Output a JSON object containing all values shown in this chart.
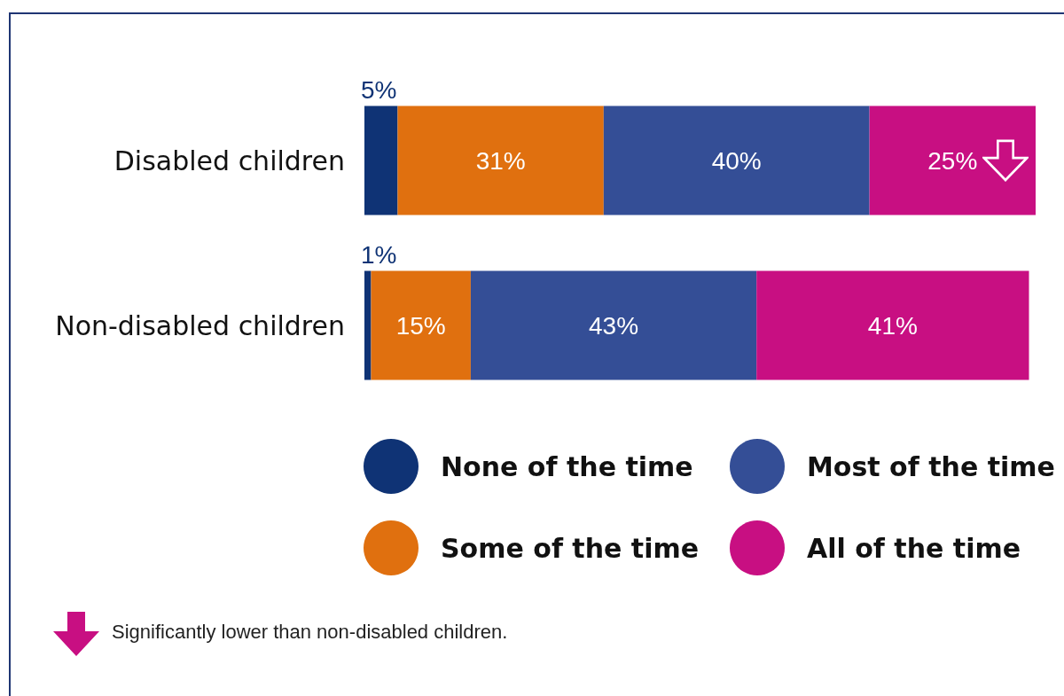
{
  "chart_data": {
    "type": "bar",
    "orientation": "horizontal",
    "stacked": true,
    "categories": [
      "Disabled children",
      "Non-disabled children"
    ],
    "xlim": [
      0,
      101
    ],
    "tick_labels": "y",
    "legend": "bottom",
    "series": [
      {
        "name": "None of the time",
        "color": "#0f3375",
        "values": [
          5,
          1
        ],
        "value_labels": [
          "5%",
          "1%"
        ]
      },
      {
        "name": "Some of the time",
        "color": "#e0700f",
        "values": [
          31,
          15
        ],
        "value_labels": [
          "31%",
          "15%"
        ]
      },
      {
        "name": "Most of the time",
        "color": "#344e96",
        "values": [
          40,
          43
        ],
        "value_labels": [
          "40%",
          "43%"
        ]
      },
      {
        "name": "All of the time",
        "color": "#c80f82",
        "values": [
          25,
          41
        ],
        "value_labels": [
          "25%",
          "41%"
        ]
      }
    ],
    "annotations": [
      "Significantly lower than non-disabled children."
    ]
  }
}
